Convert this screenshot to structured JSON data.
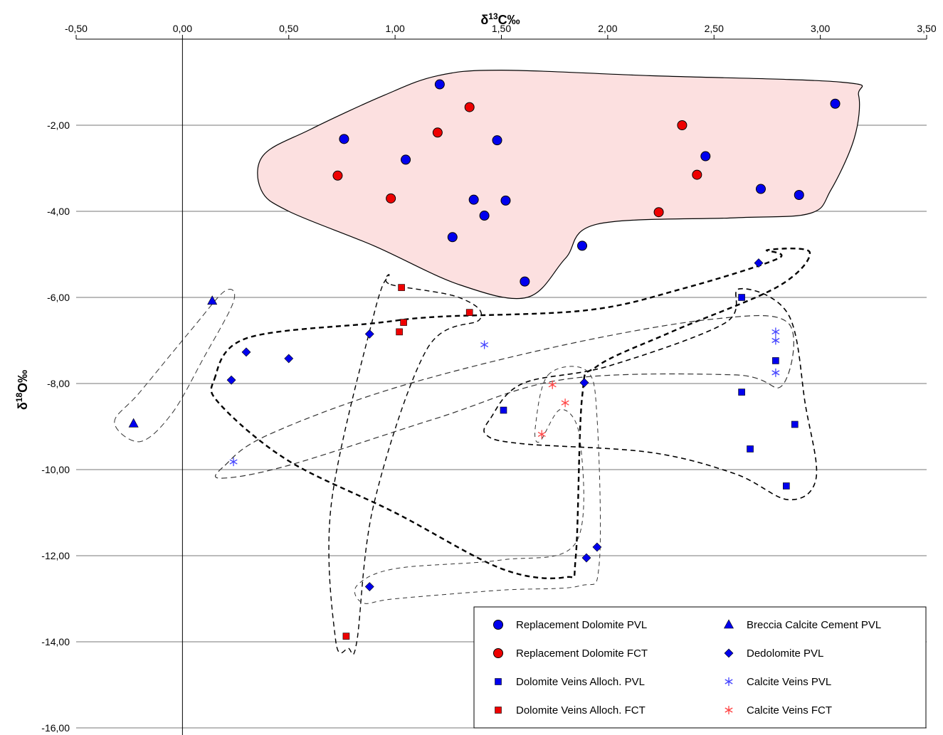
{
  "chart_data": {
    "type": "scatter",
    "xlabel": {
      "delta": "δ",
      "sup": "13",
      "rest": "C‰"
    },
    "ylabel": {
      "delta": "δ",
      "sup": "18",
      "rest": "O‰"
    },
    "xlim": [
      -0.5,
      3.5
    ],
    "ylim": [
      -16,
      0
    ],
    "x_ticks": [
      -0.5,
      0,
      0.5,
      1,
      1.5,
      2,
      2.5,
      3,
      3.5
    ],
    "x_tick_labels": [
      "-0,50",
      "0,00",
      "0,50",
      "1,00",
      "1,50",
      "2,00",
      "2,50",
      "3,00",
      "3,50"
    ],
    "y_ticks": [
      -2,
      -4,
      -6,
      -8,
      -10,
      -12,
      -14,
      -16
    ],
    "y_tick_labels": [
      "-2,00",
      "-4,00",
      "-6,00",
      "-8,00",
      "-10,00",
      "-12,00",
      "-14,00",
      "-16,00"
    ],
    "x_axis_position": "top",
    "grid": "horizontal",
    "legend_position": "bottom-right",
    "colors": {
      "blue": "#0000ee",
      "red": "#ee0000",
      "field_fill": "#fce0e0",
      "blue_star": "#4444ff",
      "red_star": "#ff4444"
    },
    "series": [
      {
        "name": "Replacement Dolomite PVL",
        "marker": "circle",
        "color": "#0000ee",
        "points": [
          [
            1.21,
            -1.05
          ],
          [
            0.76,
            -2.32
          ],
          [
            1.05,
            -2.8
          ],
          [
            1.48,
            -2.35
          ],
          [
            1.37,
            -3.73
          ],
          [
            1.52,
            -3.75
          ],
          [
            1.42,
            -4.1
          ],
          [
            1.27,
            -4.6
          ],
          [
            1.61,
            -5.63
          ],
          [
            1.88,
            -4.8
          ],
          [
            2.46,
            -2.72
          ],
          [
            2.72,
            -3.48
          ],
          [
            2.9,
            -3.62
          ],
          [
            3.07,
            -1.5
          ]
        ]
      },
      {
        "name": "Replacement Dolomite FCT",
        "marker": "circle",
        "color": "#ee0000",
        "points": [
          [
            1.2,
            -2.17
          ],
          [
            1.35,
            -1.58
          ],
          [
            0.73,
            -3.17
          ],
          [
            0.98,
            -3.7
          ],
          [
            2.35,
            -2.0
          ],
          [
            2.42,
            -3.15
          ],
          [
            2.24,
            -4.02
          ]
        ]
      },
      {
        "name": "Dolomite Veins Alloch. PVL",
        "marker": "square",
        "color": "#0000ee",
        "points": [
          [
            1.51,
            -8.62
          ],
          [
            2.63,
            -6.0
          ],
          [
            2.63,
            -8.2
          ],
          [
            2.67,
            -9.52
          ],
          [
            2.79,
            -7.47
          ],
          [
            2.84,
            -10.38
          ],
          [
            2.88,
            -8.95
          ]
        ]
      },
      {
        "name": "Dolomite Veins Alloch. FCT",
        "marker": "square",
        "color": "#ee0000",
        "points": [
          [
            1.03,
            -5.77
          ],
          [
            1.04,
            -6.58
          ],
          [
            1.02,
            -6.8
          ],
          [
            1.35,
            -6.35
          ],
          [
            0.77,
            -13.87
          ]
        ]
      },
      {
        "name": "Breccia Calcite Cement PVL",
        "marker": "triangle",
        "color": "#0000ee",
        "points": [
          [
            -0.23,
            -8.93
          ],
          [
            0.14,
            -6.08
          ]
        ]
      },
      {
        "name": "Dedolomite PVL",
        "marker": "diamond",
        "color": "#0000ee",
        "points": [
          [
            0.23,
            -7.92
          ],
          [
            0.3,
            -7.27
          ],
          [
            0.5,
            -7.42
          ],
          [
            0.88,
            -6.85
          ],
          [
            1.89,
            -7.98
          ],
          [
            2.71,
            -5.2
          ],
          [
            1.95,
            -11.8
          ],
          [
            1.9,
            -12.05
          ],
          [
            0.88,
            -12.72
          ]
        ]
      },
      {
        "name": "Calcite Veins PVL",
        "marker": "star",
        "color": "#4444ff",
        "points": [
          [
            1.42,
            -7.1
          ],
          [
            0.24,
            -9.82
          ],
          [
            2.79,
            -6.8
          ],
          [
            2.79,
            -7.0
          ],
          [
            2.79,
            -7.75
          ]
        ]
      },
      {
        "name": "Calcite Veins FCT",
        "marker": "star",
        "color": "#ff4444",
        "points": [
          [
            1.74,
            -8.03
          ],
          [
            1.8,
            -8.45
          ],
          [
            1.69,
            -9.18
          ]
        ]
      }
    ],
    "legend": [
      {
        "label": "Replacement Dolomite PVL",
        "marker": "circle",
        "color": "#0000ee"
      },
      {
        "label": "Breccia Calcite Cement PVL",
        "marker": "triangle",
        "color": "#0000ee"
      },
      {
        "label": "Replacement Dolomite FCT",
        "marker": "circle",
        "color": "#ee0000"
      },
      {
        "label": "Dedolomite PVL",
        "marker": "diamond",
        "color": "#0000ee"
      },
      {
        "label": "Dolomite Veins Alloch. PVL",
        "marker": "square",
        "color": "#0000ee"
      },
      {
        "label": "Calcite Veins PVL",
        "marker": "star",
        "color": "#4444ff"
      },
      {
        "label": "Dolomite Veins Alloch. FCT",
        "marker": "square",
        "color": "#ee0000"
      },
      {
        "label": "Calcite Veins FCT",
        "marker": "star",
        "color": "#ff4444"
      }
    ]
  }
}
